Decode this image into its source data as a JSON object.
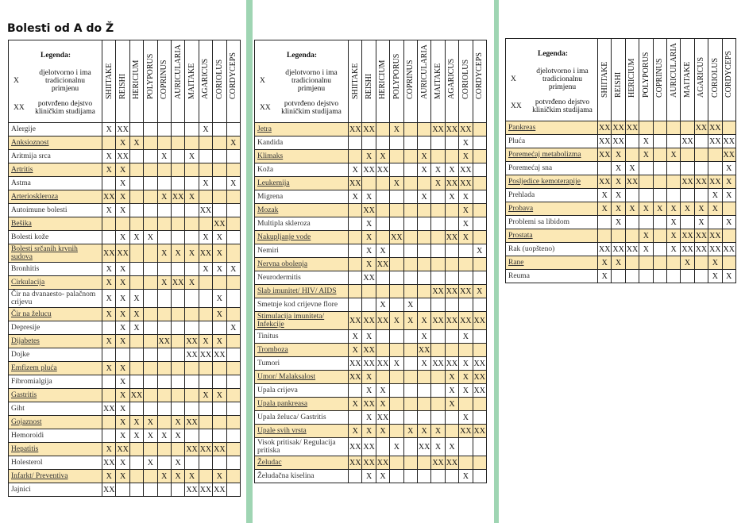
{
  "title": "Bolesti od A do Ž",
  "legend": {
    "heading": "Legenda:",
    "items": [
      {
        "symbol": "X",
        "text": "djelotvorno i ima tradicionalnu primjenu"
      },
      {
        "symbol": "XX",
        "text": "potvrđeno dejstvo kliničkim studijama"
      }
    ]
  },
  "columns": [
    "SHIITAKE",
    "REISHI",
    "HERICIUM",
    "POLYPORUS",
    "COPRINUS",
    "AURICULARIA",
    "MAITAKE",
    "AGARICUS",
    "CORIOLUS",
    "CORDYCEPS"
  ],
  "tables": [
    {
      "rows": [
        {
          "name": "Alergije",
          "cells": [
            "X",
            "XX",
            null,
            null,
            null,
            null,
            null,
            "X",
            null,
            null
          ]
        },
        {
          "name": "Anksioznost",
          "cells": [
            null,
            "X",
            "X",
            null,
            null,
            null,
            null,
            null,
            null,
            "X"
          ]
        },
        {
          "name": "Aritmija srca",
          "cells": [
            "X",
            "XX",
            null,
            null,
            "X",
            null,
            "X",
            null,
            null,
            null
          ]
        },
        {
          "name": "Artritis",
          "cells": [
            "X",
            "X",
            null,
            null,
            null,
            null,
            null,
            null,
            null,
            null
          ]
        },
        {
          "name": "Astma",
          "cells": [
            null,
            "X",
            null,
            null,
            null,
            null,
            null,
            "X",
            null,
            "X"
          ]
        },
        {
          "name": "Arterioskleroza",
          "cells": [
            "XX",
            "X",
            null,
            null,
            "X",
            "XX",
            "X",
            null,
            null,
            null
          ]
        },
        {
          "name": "Autoimune bolesti",
          "cells": [
            "X",
            "X",
            null,
            null,
            null,
            null,
            null,
            "XX",
            null,
            null
          ]
        },
        {
          "name": "Bešika",
          "cells": [
            null,
            null,
            null,
            null,
            null,
            null,
            null,
            null,
            "XX",
            null
          ]
        },
        {
          "name": "Bolesti kože",
          "cells": [
            null,
            "X",
            "X",
            "X",
            null,
            null,
            null,
            "X",
            "X",
            null
          ]
        },
        {
          "name": "Bolesti srčanih krvnih sudova",
          "cells": [
            "XX",
            "XX",
            null,
            null,
            "X",
            "X",
            "X",
            "XX",
            "X",
            null
          ]
        },
        {
          "name": "Bronhitis",
          "cells": [
            "X",
            "X",
            null,
            null,
            null,
            null,
            null,
            "X",
            "X",
            "X"
          ]
        },
        {
          "name": "Cirkulacija",
          "cells": [
            "X",
            "X",
            null,
            null,
            "X",
            "XX",
            "X",
            null,
            null,
            null
          ]
        },
        {
          "name": "Čir na dvanaesto- palačnom crijevu",
          "cells": [
            "X",
            "X",
            "X",
            null,
            null,
            null,
            null,
            null,
            "X",
            null
          ]
        },
        {
          "name": "Čir na želucu",
          "cells": [
            "X",
            "X",
            "X",
            null,
            null,
            null,
            null,
            null,
            "X",
            null
          ]
        },
        {
          "name": "Depresije",
          "cells": [
            null,
            "X",
            "X",
            null,
            null,
            null,
            null,
            null,
            null,
            "X"
          ]
        },
        {
          "name": "Dijabetes",
          "cells": [
            "X",
            "X",
            null,
            null,
            "XX",
            null,
            "XX",
            "X",
            "X",
            null
          ]
        },
        {
          "name": "Dojke",
          "cells": [
            null,
            null,
            null,
            null,
            null,
            null,
            "XX",
            "XX",
            "XX",
            null
          ]
        },
        {
          "name": "Emfizem pluća",
          "cells": [
            "X",
            "X",
            null,
            null,
            null,
            null,
            null,
            null,
            null,
            null
          ]
        },
        {
          "name": "Fibromialgija",
          "cells": [
            null,
            "X",
            null,
            null,
            null,
            null,
            null,
            null,
            null,
            null
          ]
        },
        {
          "name": "Gastritis",
          "cells": [
            null,
            "X",
            "XX",
            null,
            null,
            null,
            null,
            "X",
            "X",
            null
          ]
        },
        {
          "name": "Giht",
          "cells": [
            "XX",
            "X",
            null,
            null,
            null,
            null,
            null,
            null,
            null,
            null
          ]
        },
        {
          "name": "Gojaznost",
          "cells": [
            null,
            "X",
            "X",
            "X",
            null,
            "X",
            "XX",
            null,
            null,
            null
          ]
        },
        {
          "name": "Hemoroidi",
          "cells": [
            null,
            "X",
            "X",
            "X",
            "X",
            "X",
            null,
            null,
            null,
            null
          ]
        },
        {
          "name": "Hepatitis",
          "cells": [
            "X",
            "XX",
            null,
            null,
            null,
            null,
            "XX",
            "XX",
            "XX",
            null
          ]
        },
        {
          "name": "Holesterol",
          "cells": [
            "XX",
            "X",
            null,
            "X",
            null,
            "X",
            null,
            null,
            null,
            null
          ]
        },
        {
          "name": "Infarkt/ Preventiva",
          "cells": [
            "X",
            "X",
            null,
            null,
            "X",
            "X",
            "X",
            null,
            "X",
            null
          ]
        },
        {
          "name": "Jajnici",
          "cells": [
            "XX",
            null,
            null,
            null,
            null,
            null,
            "XX",
            "XX",
            "XX",
            null
          ]
        }
      ]
    },
    {
      "rows": [
        {
          "name": "Jetra",
          "cells": [
            "XX",
            "XX",
            null,
            "X",
            null,
            null,
            "XX",
            "XX",
            "XX",
            null
          ]
        },
        {
          "name": "Kandida",
          "cells": [
            null,
            null,
            null,
            null,
            null,
            null,
            null,
            null,
            "X",
            null
          ]
        },
        {
          "name": "Klimaks",
          "cells": [
            null,
            "X",
            "X",
            null,
            null,
            "X",
            null,
            null,
            "X",
            null
          ]
        },
        {
          "name": "Koža",
          "cells": [
            "X",
            "XX",
            "XX",
            null,
            null,
            "X",
            "X",
            "X",
            "XX",
            null
          ]
        },
        {
          "name": "Leukemija",
          "cells": [
            "XX",
            null,
            null,
            "X",
            null,
            null,
            "X",
            "XX",
            "XX",
            null
          ]
        },
        {
          "name": "Migrena",
          "cells": [
            "X",
            "X",
            null,
            null,
            null,
            "X",
            null,
            "X",
            "X",
            null
          ]
        },
        {
          "name": "Mozak",
          "cells": [
            null,
            "XX",
            null,
            null,
            null,
            null,
            null,
            null,
            "X",
            null
          ]
        },
        {
          "name": "Multipla skleroza",
          "cells": [
            null,
            "X",
            null,
            null,
            null,
            null,
            null,
            null,
            "X",
            null
          ]
        },
        {
          "name": "Nakupljanje vode",
          "cells": [
            null,
            "X",
            null,
            "XX",
            null,
            null,
            null,
            "XX",
            "X",
            null
          ]
        },
        {
          "name": "Nemiri",
          "cells": [
            null,
            "X",
            "X",
            null,
            null,
            null,
            null,
            null,
            null,
            "X"
          ]
        },
        {
          "name": "Nervna obolenja",
          "cells": [
            null,
            "X",
            "XX",
            null,
            null,
            null,
            null,
            null,
            null,
            null
          ]
        },
        {
          "name": "Neurodermitis",
          "cells": [
            null,
            "XX",
            null,
            null,
            null,
            null,
            null,
            null,
            null,
            null
          ]
        },
        {
          "name": "Slab imunitet/ HIV/ AIDS",
          "cells": [
            null,
            null,
            null,
            null,
            null,
            null,
            "XX",
            "XX",
            "XX",
            "X"
          ]
        },
        {
          "name": "Smetnje kod crijevne flore",
          "cells": [
            null,
            null,
            "X",
            null,
            "X",
            null,
            null,
            null,
            null,
            null
          ]
        },
        {
          "name": "Stimulacija imuniteta/ Infekcije",
          "cells": [
            "XX",
            "XX",
            "XX",
            "X",
            "X",
            "X",
            "XX",
            "XX",
            "XX",
            "XX"
          ]
        },
        {
          "name": "Tinitus",
          "cells": [
            "X",
            "X",
            null,
            null,
            null,
            "X",
            null,
            null,
            "X",
            null
          ]
        },
        {
          "name": "Tromboza",
          "cells": [
            "X",
            "XX",
            null,
            null,
            null,
            "XX",
            null,
            null,
            null,
            null
          ]
        },
        {
          "name": "Tumori",
          "cells": [
            "XX",
            "XX",
            "XX",
            "X",
            null,
            "X",
            "XX",
            "XX",
            "X",
            "XX"
          ]
        },
        {
          "name": "Umor/ Malaksalost",
          "cells": [
            "XX",
            "X",
            null,
            null,
            null,
            null,
            null,
            "X",
            "X",
            "XX"
          ]
        },
        {
          "name": "Upala crijeva",
          "cells": [
            null,
            "X",
            "X",
            null,
            null,
            null,
            null,
            "X",
            "X",
            "XX"
          ]
        },
        {
          "name": "Upala pankreasa",
          "cells": [
            "X",
            "XX",
            "X",
            null,
            null,
            null,
            null,
            "X",
            null,
            null
          ]
        },
        {
          "name": "Upala želuca/ Gastritis",
          "cells": [
            null,
            "X",
            "XX",
            null,
            null,
            null,
            null,
            null,
            "X",
            null
          ]
        },
        {
          "name": "Upale svih vrsta",
          "cells": [
            "X",
            "X",
            "X",
            null,
            "X",
            "X",
            "X",
            null,
            "XX",
            "XX"
          ]
        },
        {
          "name": "Visok pritisak/ Regulacija pritiska",
          "cells": [
            "XX",
            "XX",
            null,
            "X",
            null,
            "XX",
            "X",
            "X",
            null,
            null
          ]
        },
        {
          "name": "Želudac",
          "cells": [
            "XX",
            "XX",
            "XX",
            null,
            null,
            null,
            "XX",
            "XX",
            null,
            null
          ]
        },
        {
          "name": "Želudačna kiselina",
          "cells": [
            null,
            "X",
            "X",
            null,
            null,
            null,
            null,
            null,
            "X",
            null
          ]
        }
      ]
    },
    {
      "rows": [
        {
          "name": "Pankreas",
          "cells": [
            "XX",
            "XX",
            "XX",
            null,
            null,
            null,
            null,
            "XX",
            "XX",
            null
          ]
        },
        {
          "name": "Pluća",
          "cells": [
            "XX",
            "XX",
            null,
            "X",
            null,
            null,
            "XX",
            null,
            "XX",
            "XX"
          ]
        },
        {
          "name": "Poremećaj metabolizma",
          "cells": [
            "XX",
            "X",
            null,
            "X",
            null,
            "X",
            null,
            null,
            null,
            "XX"
          ]
        },
        {
          "name": "Poremećaj sna",
          "cells": [
            null,
            "X",
            "X",
            null,
            null,
            null,
            null,
            null,
            null,
            "X"
          ]
        },
        {
          "name": "Posljedice kemoterapije",
          "cells": [
            "XX",
            "X",
            "XX",
            null,
            null,
            null,
            "XX",
            "XX",
            "XX",
            "X"
          ]
        },
        {
          "name": "Prehlada",
          "cells": [
            "X",
            "X",
            null,
            null,
            null,
            null,
            null,
            null,
            "X",
            "X"
          ]
        },
        {
          "name": "Probava",
          "cells": [
            "X",
            "X",
            "X",
            "X",
            "X",
            "X",
            "X",
            "X",
            "X",
            null
          ]
        },
        {
          "name": "Problemi sa libidom",
          "cells": [
            null,
            "X",
            null,
            null,
            null,
            "X",
            null,
            "X",
            null,
            "X"
          ]
        },
        {
          "name": "Prostata",
          "cells": [
            null,
            null,
            null,
            "X",
            null,
            "X",
            "XX",
            "XX",
            "XX",
            null
          ]
        },
        {
          "name": "Rak (uopšteno)",
          "cells": [
            "XX",
            "XX",
            "XX",
            "X",
            null,
            "X",
            "XX",
            "XX",
            "XX",
            "XX"
          ]
        },
        {
          "name": "Rane",
          "cells": [
            "X",
            "X",
            null,
            null,
            null,
            null,
            "X",
            null,
            "X",
            null
          ]
        },
        {
          "name": "Reuma",
          "cells": [
            "X",
            null,
            null,
            null,
            null,
            null,
            null,
            null,
            "X",
            "X"
          ]
        }
      ]
    }
  ]
}
